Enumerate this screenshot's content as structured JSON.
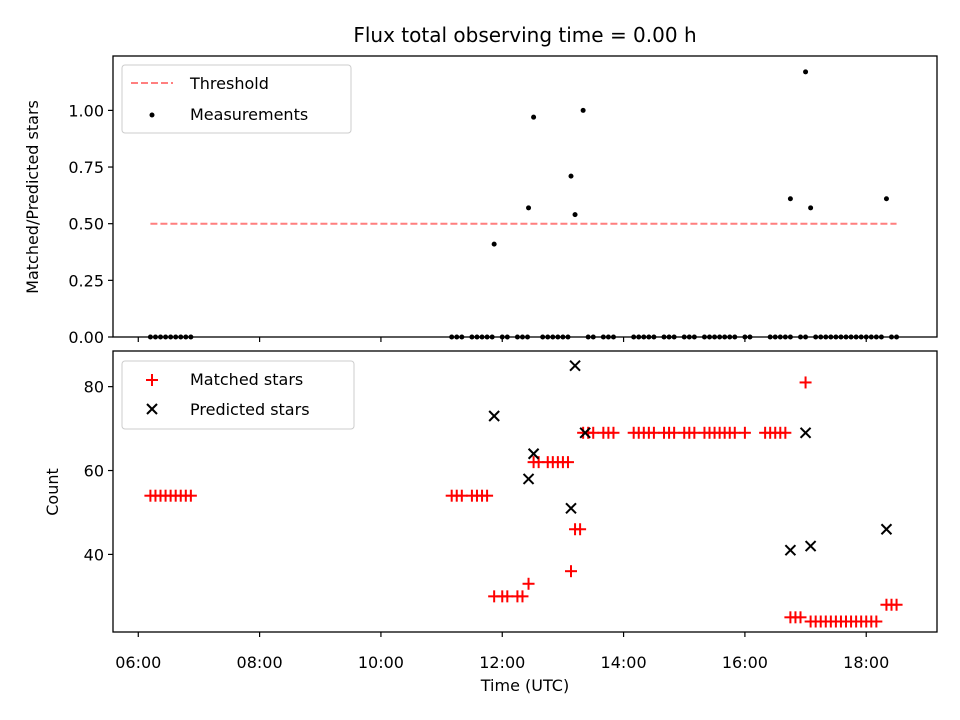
{
  "chart_data": [
    {
      "type": "scatter",
      "title": "Flux total observing time = 0.00 h",
      "xlabel": "",
      "ylabel": "Matched/Predicted stars",
      "xlim": [
        "05:35",
        "19:10"
      ],
      "ylim": [
        0.0,
        1.24
      ],
      "yticks": [
        "0.00",
        "0.25",
        "0.50",
        "0.75",
        "1.00"
      ],
      "legend_position": "upper left",
      "series": [
        {
          "name": "Threshold",
          "kind": "line",
          "style": "dashed",
          "color": "#ff7f7f",
          "points": [
            [
              "06:12",
              0.5
            ],
            [
              "18:30",
              0.5
            ]
          ]
        },
        {
          "name": "Measurements",
          "kind": "scatter",
          "marker": "dot",
          "color": "#000000",
          "points": [
            [
              "06:12",
              0
            ],
            [
              "06:17",
              0
            ],
            [
              "06:22",
              0
            ],
            [
              "06:27",
              0
            ],
            [
              "06:32",
              0
            ],
            [
              "06:37",
              0
            ],
            [
              "06:42",
              0
            ],
            [
              "06:47",
              0
            ],
            [
              "06:52",
              0
            ],
            [
              "11:10",
              0
            ],
            [
              "11:15",
              0
            ],
            [
              "11:20",
              0
            ],
            [
              "11:30",
              0
            ],
            [
              "11:35",
              0
            ],
            [
              "11:40",
              0
            ],
            [
              "11:45",
              0
            ],
            [
              "11:50",
              0
            ],
            [
              "11:52",
              0.41
            ],
            [
              "12:00",
              0
            ],
            [
              "12:05",
              0
            ],
            [
              "12:15",
              0
            ],
            [
              "12:20",
              0
            ],
            [
              "12:25",
              0
            ],
            [
              "12:26",
              0.57
            ],
            [
              "12:31",
              0.97
            ],
            [
              "12:40",
              0
            ],
            [
              "12:45",
              0
            ],
            [
              "12:50",
              0
            ],
            [
              "12:55",
              0
            ],
            [
              "13:00",
              0
            ],
            [
              "13:05",
              0
            ],
            [
              "13:08",
              0.71
            ],
            [
              "13:12",
              0.54
            ],
            [
              "13:20",
              1.0
            ],
            [
              "13:25",
              0
            ],
            [
              "13:30",
              0
            ],
            [
              "13:40",
              0
            ],
            [
              "13:45",
              0
            ],
            [
              "13:50",
              0
            ],
            [
              "14:10",
              0
            ],
            [
              "14:15",
              0
            ],
            [
              "14:20",
              0
            ],
            [
              "14:25",
              0
            ],
            [
              "14:30",
              0
            ],
            [
              "14:40",
              0
            ],
            [
              "14:45",
              0
            ],
            [
              "14:50",
              0
            ],
            [
              "15:00",
              0
            ],
            [
              "15:05",
              0
            ],
            [
              "15:10",
              0
            ],
            [
              "15:20",
              0
            ],
            [
              "15:25",
              0
            ],
            [
              "15:30",
              0
            ],
            [
              "15:35",
              0
            ],
            [
              "15:40",
              0
            ],
            [
              "15:45",
              0
            ],
            [
              "15:50",
              0
            ],
            [
              "16:00",
              0
            ],
            [
              "16:05",
              0
            ],
            [
              "16:25",
              0
            ],
            [
              "16:30",
              0
            ],
            [
              "16:35",
              0
            ],
            [
              "16:40",
              0
            ],
            [
              "16:45",
              0
            ],
            [
              "16:45",
              0.61
            ],
            [
              "16:55",
              0
            ],
            [
              "17:00",
              0
            ],
            [
              "17:00",
              1.17
            ],
            [
              "17:05",
              0.57
            ],
            [
              "17:10",
              0
            ],
            [
              "17:15",
              0
            ],
            [
              "17:20",
              0
            ],
            [
              "17:25",
              0
            ],
            [
              "17:30",
              0
            ],
            [
              "17:35",
              0
            ],
            [
              "17:40",
              0
            ],
            [
              "17:45",
              0
            ],
            [
              "17:50",
              0
            ],
            [
              "17:55",
              0
            ],
            [
              "18:00",
              0
            ],
            [
              "18:05",
              0
            ],
            [
              "18:10",
              0
            ],
            [
              "18:15",
              0
            ],
            [
              "18:20",
              0.61
            ],
            [
              "18:25",
              0
            ],
            [
              "18:30",
              0
            ]
          ]
        }
      ]
    },
    {
      "type": "scatter",
      "title": "",
      "xlabel": "Time (UTC)",
      "ylabel": "Count",
      "xlim": [
        "05:35",
        "19:10"
      ],
      "ylim": [
        21.5,
        88.5
      ],
      "xticks": [
        "06:00",
        "08:00",
        "10:00",
        "12:00",
        "14:00",
        "16:00",
        "18:00"
      ],
      "yticks": [
        "40",
        "60",
        "80"
      ],
      "legend_position": "upper left",
      "series": [
        {
          "name": "Matched stars",
          "kind": "scatter",
          "marker": "plus",
          "color": "#ff0000",
          "points": [
            [
              "06:12",
              54
            ],
            [
              "06:17",
              54
            ],
            [
              "06:22",
              54
            ],
            [
              "06:27",
              54
            ],
            [
              "06:32",
              54
            ],
            [
              "06:37",
              54
            ],
            [
              "06:42",
              54
            ],
            [
              "06:47",
              54
            ],
            [
              "06:52",
              54
            ],
            [
              "11:10",
              54
            ],
            [
              "11:15",
              54
            ],
            [
              "11:20",
              54
            ],
            [
              "11:30",
              54
            ],
            [
              "11:35",
              54
            ],
            [
              "11:40",
              54
            ],
            [
              "11:45",
              54
            ],
            [
              "11:52",
              30
            ],
            [
              "12:00",
              30
            ],
            [
              "12:05",
              30
            ],
            [
              "12:15",
              30
            ],
            [
              "12:20",
              30
            ],
            [
              "12:26",
              33
            ],
            [
              "12:31",
              62
            ],
            [
              "12:36",
              62
            ],
            [
              "12:45",
              62
            ],
            [
              "12:50",
              62
            ],
            [
              "12:55",
              62
            ],
            [
              "13:00",
              62
            ],
            [
              "13:05",
              62
            ],
            [
              "13:08",
              36
            ],
            [
              "13:12",
              46
            ],
            [
              "13:17",
              46
            ],
            [
              "13:20",
              69
            ],
            [
              "13:25",
              69
            ],
            [
              "13:30",
              69
            ],
            [
              "13:40",
              69
            ],
            [
              "13:45",
              69
            ],
            [
              "13:50",
              69
            ],
            [
              "14:10",
              69
            ],
            [
              "14:15",
              69
            ],
            [
              "14:20",
              69
            ],
            [
              "14:25",
              69
            ],
            [
              "14:30",
              69
            ],
            [
              "14:40",
              69
            ],
            [
              "14:45",
              69
            ],
            [
              "14:50",
              69
            ],
            [
              "15:00",
              69
            ],
            [
              "15:05",
              69
            ],
            [
              "15:10",
              69
            ],
            [
              "15:20",
              69
            ],
            [
              "15:25",
              69
            ],
            [
              "15:30",
              69
            ],
            [
              "15:35",
              69
            ],
            [
              "15:40",
              69
            ],
            [
              "15:45",
              69
            ],
            [
              "15:50",
              69
            ],
            [
              "16:00",
              69
            ],
            [
              "16:20",
              69
            ],
            [
              "16:25",
              69
            ],
            [
              "16:30",
              69
            ],
            [
              "16:35",
              69
            ],
            [
              "16:40",
              69
            ],
            [
              "16:45",
              25
            ],
            [
              "16:50",
              25
            ],
            [
              "16:55",
              25
            ],
            [
              "17:00",
              81
            ],
            [
              "17:05",
              24
            ],
            [
              "17:10",
              24
            ],
            [
              "17:15",
              24
            ],
            [
              "17:20",
              24
            ],
            [
              "17:25",
              24
            ],
            [
              "17:30",
              24
            ],
            [
              "17:35",
              24
            ],
            [
              "17:40",
              24
            ],
            [
              "17:45",
              24
            ],
            [
              "17:50",
              24
            ],
            [
              "17:55",
              24
            ],
            [
              "18:00",
              24
            ],
            [
              "18:05",
              24
            ],
            [
              "18:10",
              24
            ],
            [
              "18:20",
              28
            ],
            [
              "18:25",
              28
            ],
            [
              "18:30",
              28
            ]
          ]
        },
        {
          "name": "Predicted stars",
          "kind": "scatter",
          "marker": "x",
          "color": "#000000",
          "points": [
            [
              "11:52",
              73
            ],
            [
              "12:26",
              58
            ],
            [
              "12:31",
              64
            ],
            [
              "13:08",
              51
            ],
            [
              "13:12",
              85
            ],
            [
              "13:22",
              69
            ],
            [
              "16:45",
              41
            ],
            [
              "17:00",
              69
            ],
            [
              "17:05",
              42
            ],
            [
              "18:20",
              46
            ]
          ]
        }
      ]
    }
  ]
}
